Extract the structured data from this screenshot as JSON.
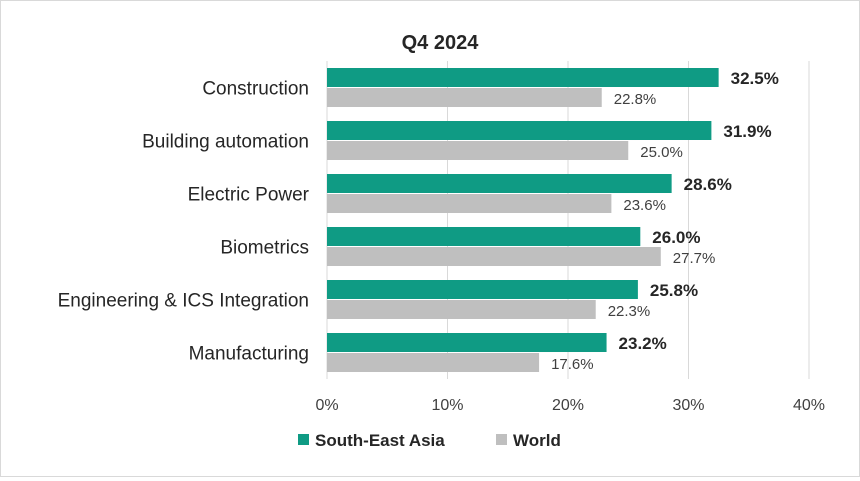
{
  "chart_data": {
    "type": "bar",
    "orientation": "horizontal",
    "title": "Q4 2024",
    "categories": [
      "Construction",
      "Building automation",
      "Electric Power",
      "Biometrics",
      "Engineering & ICS Integration",
      "Manufacturing"
    ],
    "series": [
      {
        "name": "South-East Asia",
        "color": "#0f9b84",
        "values": [
          32.5,
          31.9,
          28.6,
          26.0,
          25.8,
          23.2
        ],
        "labels": [
          "32.5%",
          "31.9%",
          "28.6%",
          "26.0%",
          "25.8%",
          "23.2%"
        ]
      },
      {
        "name": "World",
        "color": "#bfbfbf",
        "values": [
          22.8,
          25.0,
          23.6,
          27.7,
          22.3,
          17.6
        ],
        "labels": [
          "22.8%",
          "25.0%",
          "23.6%",
          "27.7%",
          "22.3%",
          "17.6%"
        ]
      }
    ],
    "xlim": [
      0,
      40
    ],
    "xticks": [
      0,
      10,
      20,
      30,
      40
    ],
    "xtick_labels": [
      "0%",
      "10%",
      "20%",
      "30%",
      "40%"
    ],
    "grid": "vertical",
    "legend_position": "bottom"
  }
}
